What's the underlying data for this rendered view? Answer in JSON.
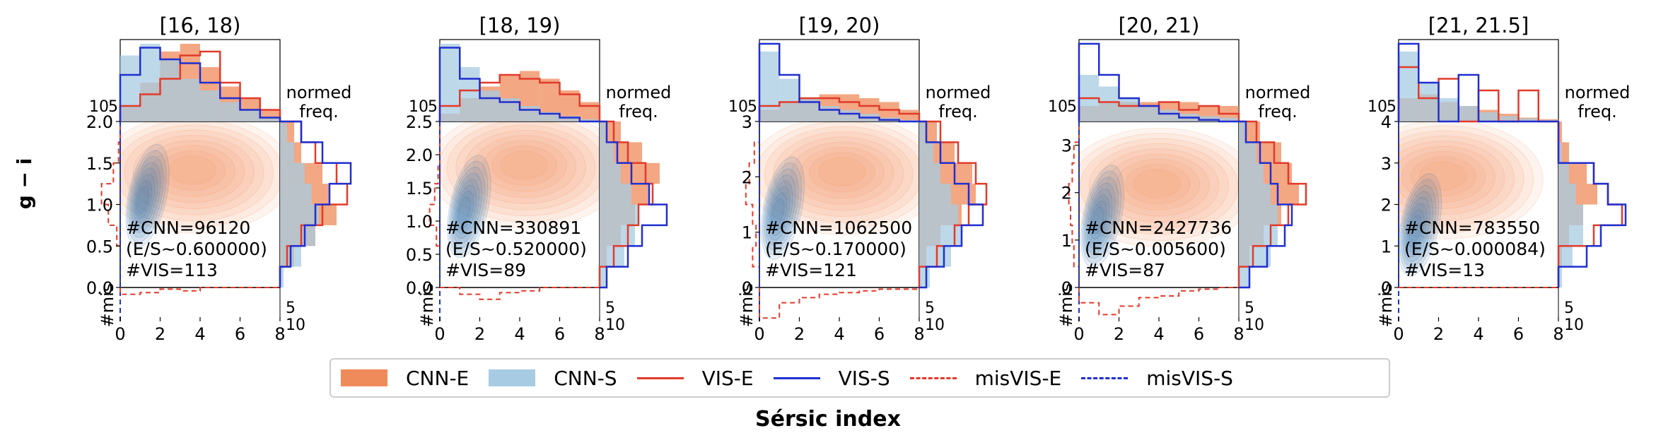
{
  "figure": {
    "ylabel": "g − i",
    "xlabel": "Sérsic index",
    "marg_x_label_top": "normed",
    "marg_x_label_bottom": "freq.",
    "top_ticks": [
      "10",
      "5"
    ],
    "bottom_marg_ticks": [
      "5",
      "10"
    ],
    "bottom_marg_label": "#mis"
  },
  "colors": {
    "cnn_e": "#ef8a5a",
    "cnn_s": "#a7cbe2",
    "vis_e": "#e23a2a",
    "vis_s": "#1f2fd0",
    "kde_blue": "#2b6ca8",
    "kde_orange": "#f08a4b"
  },
  "legend": [
    {
      "label": "CNN-E",
      "style": "patch",
      "color": "#ef8a5a"
    },
    {
      "label": "CNN-S",
      "style": "patch",
      "color": "#a7cbe2"
    },
    {
      "label": "VIS-E",
      "style": "solid",
      "color": "#e23a2a"
    },
    {
      "label": "VIS-S",
      "style": "solid",
      "color": "#1f2fd0"
    },
    {
      "label": "misVIS-E",
      "style": "dashed",
      "color": "#e23a2a"
    },
    {
      "label": "misVIS-S",
      "style": "dashed",
      "color": "#1f2fd0"
    }
  ],
  "chart_data": [
    {
      "type": "scatter",
      "title": "[16, 18)",
      "xlim": [
        0,
        8
      ],
      "ylim": [
        0,
        2.0
      ],
      "xticks": [
        "0",
        "2",
        "4",
        "6",
        "8"
      ],
      "yticks": [
        "0.0",
        "0.5",
        "1.0",
        "1.5",
        "2.0"
      ],
      "annotation": [
        "#CNN=96120",
        "(E/S~0.600000)",
        "#VIS=113"
      ],
      "kde_centers": {
        "spiral": [
          1.1,
          1.05
        ],
        "elliptical": [
          3.6,
          1.42
        ]
      },
      "hist_top": {
        "cnn_e": [
          0.2,
          0.5,
          0.9,
          1.0,
          0.7,
          0.45,
          0.3,
          0.15
        ],
        "cnn_s": [
          0.85,
          1.0,
          0.8,
          0.55,
          0.4,
          0.25,
          0.15,
          0.05
        ],
        "vis_e": [
          0.2,
          0.35,
          0.55,
          0.85,
          0.9,
          0.5,
          0.3,
          0.15
        ],
        "vis_s": [
          0.6,
          0.95,
          0.8,
          0.75,
          0.5,
          0.3,
          0.15,
          0.05
        ]
      },
      "hist_right": {
        "cnn_e": [
          0.0,
          0.2,
          0.5,
          0.8,
          0.7,
          0.6,
          0.3,
          0.2
        ],
        "cnn_s": [
          0.05,
          0.3,
          0.5,
          0.55,
          0.45,
          0.35,
          0.2,
          0.1
        ],
        "vis_e": [
          0.0,
          0.1,
          0.3,
          0.6,
          0.95,
          0.8,
          0.5,
          0.3
        ],
        "vis_s": [
          0.0,
          0.15,
          0.35,
          0.5,
          0.7,
          1.0,
          0.6,
          0.3
        ]
      },
      "mis_left_e": [
        0.0,
        0.0,
        0.1,
        0.35,
        0.55,
        0.2,
        0.05,
        0.0
      ],
      "mis_bottom_e": [
        0.2,
        0.15,
        0.05,
        0.1,
        0.0,
        0.0,
        0.0,
        0.0
      ]
    },
    {
      "type": "scatter",
      "title": "[18, 19)",
      "xlim": [
        0,
        8
      ],
      "ylim": [
        0,
        2.5
      ],
      "xticks": [
        "0",
        "2",
        "4",
        "6",
        "8"
      ],
      "yticks": [
        "0.0",
        "0.5",
        "1.0",
        "1.5",
        "2.0",
        "2.5"
      ],
      "annotation": [
        "#CNN=330891",
        "(E/S~0.520000)",
        "#VIS=89"
      ],
      "kde_centers": {
        "spiral": [
          1.2,
          1.15
        ],
        "elliptical": [
          4.2,
          1.85
        ]
      },
      "hist_top": {
        "cnn_e": [
          0.1,
          0.3,
          0.45,
          0.6,
          0.65,
          0.55,
          0.4,
          0.25
        ],
        "cnn_s": [
          1.0,
          0.7,
          0.4,
          0.3,
          0.2,
          0.12,
          0.07,
          0.03
        ],
        "vis_e": [
          0.2,
          0.4,
          0.5,
          0.6,
          0.55,
          0.5,
          0.35,
          0.2
        ],
        "vis_s": [
          0.95,
          0.55,
          0.3,
          0.25,
          0.15,
          0.1,
          0.05,
          0.0
        ]
      },
      "hist_right": {
        "cnn_e": [
          0.0,
          0.1,
          0.3,
          0.5,
          0.7,
          0.85,
          0.6,
          0.3
        ],
        "cnn_s": [
          0.1,
          0.35,
          0.5,
          0.55,
          0.45,
          0.3,
          0.2,
          0.1
        ],
        "vis_e": [
          0.0,
          0.2,
          0.4,
          0.55,
          0.75,
          0.65,
          0.4,
          0.2
        ],
        "vis_s": [
          0.1,
          0.4,
          0.6,
          0.95,
          0.7,
          0.45,
          0.25,
          0.1
        ]
      },
      "mis_left_e": [
        0.0,
        0.0,
        0.1,
        0.3,
        0.15,
        0.05,
        0.0,
        0.0
      ],
      "mis_bottom_e": [
        0.0,
        0.2,
        0.35,
        0.15,
        0.1,
        0.0,
        0.0,
        0.0
      ]
    },
    {
      "type": "scatter",
      "title": "[19, 20)",
      "xlim": [
        0,
        8
      ],
      "ylim": [
        0,
        3
      ],
      "xticks": [
        "0",
        "2",
        "4",
        "6",
        "8"
      ],
      "yticks": [
        "0",
        "1",
        "2",
        "3"
      ],
      "annotation": [
        "#CNN=1062500",
        "(E/S~0.170000)",
        "#VIS=121"
      ],
      "kde_centers": {
        "spiral": [
          0.9,
          1.35
        ],
        "elliptical": [
          4.1,
          2.1
        ]
      },
      "hist_top": {
        "cnn_e": [
          0.15,
          0.25,
          0.3,
          0.35,
          0.35,
          0.3,
          0.25,
          0.15
        ],
        "cnn_s": [
          0.9,
          0.55,
          0.3,
          0.2,
          0.15,
          0.1,
          0.05,
          0.02
        ],
        "vis_e": [
          0.2,
          0.25,
          0.3,
          0.3,
          0.25,
          0.2,
          0.15,
          0.1
        ],
        "vis_s": [
          1.0,
          0.6,
          0.25,
          0.15,
          0.1,
          0.05,
          0.02,
          0.0
        ]
      },
      "hist_right": {
        "cnn_e": [
          0.0,
          0.1,
          0.3,
          0.6,
          0.8,
          0.75,
          0.5,
          0.25
        ],
        "cnn_s": [
          0.15,
          0.45,
          0.6,
          0.55,
          0.45,
          0.3,
          0.2,
          0.1
        ],
        "vis_e": [
          0.0,
          0.25,
          0.5,
          0.7,
          0.95,
          0.8,
          0.55,
          0.3
        ],
        "vis_s": [
          0.1,
          0.35,
          0.6,
          0.9,
          0.7,
          0.5,
          0.3,
          0.1
        ]
      },
      "mis_left_e": [
        0.0,
        0.2,
        0.1,
        0.2,
        0.4,
        0.3,
        0.15,
        0.0
      ],
      "mis_bottom_e": [
        0.9,
        0.45,
        0.3,
        0.2,
        0.15,
        0.1,
        0.05,
        0.05
      ]
    },
    {
      "type": "scatter",
      "title": "[20, 21)",
      "xlim": [
        0,
        8
      ],
      "ylim": [
        0,
        3.5
      ],
      "xticks": [
        "0",
        "2",
        "4",
        "6",
        "8"
      ],
      "yticks": [
        "0",
        "1",
        "2",
        "3"
      ],
      "annotation": [
        "#CNN=2427736",
        "(E/S~0.005600)",
        "#VIS=87"
      ],
      "kde_centers": {
        "spiral": [
          0.9,
          1.4
        ],
        "elliptical": [
          3.9,
          2.2
        ]
      },
      "hist_top": {
        "cnn_e": [
          0.2,
          0.25,
          0.25,
          0.25,
          0.25,
          0.25,
          0.2,
          0.2
        ],
        "cnn_s": [
          0.6,
          0.45,
          0.3,
          0.2,
          0.15,
          0.1,
          0.07,
          0.05
        ],
        "vis_e": [
          0.3,
          0.25,
          0.2,
          0.2,
          0.25,
          0.15,
          0.2,
          0.1
        ],
        "vis_s": [
          1.0,
          0.6,
          0.3,
          0.2,
          0.1,
          0.05,
          0.02,
          0.0
        ]
      },
      "hist_right": {
        "cnn_e": [
          0.0,
          0.15,
          0.35,
          0.6,
          0.85,
          0.75,
          0.6,
          0.3
        ],
        "cnn_s": [
          0.15,
          0.45,
          0.55,
          0.55,
          0.45,
          0.35,
          0.25,
          0.1
        ],
        "vis_e": [
          0.0,
          0.2,
          0.45,
          0.7,
          0.95,
          0.7,
          0.5,
          0.25
        ],
        "vis_s": [
          0.15,
          0.4,
          0.65,
          0.75,
          0.55,
          0.45,
          0.3,
          0.1
        ]
      },
      "mis_left_e": [
        0.0,
        0.15,
        0.2,
        0.25,
        0.3,
        0.2,
        0.15,
        0.0
      ],
      "mis_bottom_e": [
        0.45,
        0.8,
        0.55,
        0.3,
        0.25,
        0.1,
        0.05,
        0.0
      ]
    },
    {
      "type": "scatter",
      "title": "[21, 21.5]",
      "xlim": [
        0,
        8
      ],
      "ylim": [
        0,
        4
      ],
      "xticks": [
        "0",
        "2",
        "4",
        "6",
        "8"
      ],
      "yticks": [
        "0",
        "1",
        "2",
        "3",
        "4"
      ],
      "annotation": [
        "#CNN=783550",
        "(E/S~0.000084)",
        "#VIS=13"
      ],
      "kde_centers": {
        "spiral": [
          0.8,
          1.4
        ],
        "elliptical": [
          2.2,
          2.7
        ]
      },
      "hist_top": {
        "cnn_e": [
          0.3,
          0.35,
          0.25,
          0.2,
          0.15,
          0.1,
          0.05,
          0.03
        ],
        "cnn_s": [
          0.9,
          0.5,
          0.3,
          0.2,
          0.12,
          0.07,
          0.04,
          0.02
        ],
        "vis_e": [
          0.7,
          0.3,
          0.55,
          0.0,
          0.4,
          0.0,
          0.4,
          0.0
        ],
        "vis_s": [
          1.0,
          0.5,
          0.0,
          0.6,
          0.0,
          0.0,
          0.0,
          0.0
        ]
      },
      "hist_right": {
        "cnn_e": [
          0.0,
          0.05,
          0.15,
          0.35,
          0.55,
          0.4,
          0.15,
          0.05
        ],
        "cnn_s": [
          0.05,
          0.2,
          0.35,
          0.35,
          0.25,
          0.15,
          0.05,
          0.0
        ],
        "vis_e": [
          0.0,
          0.0,
          0.5,
          0.9,
          0.7,
          0.5,
          0.0,
          0.0
        ],
        "vis_s": [
          0.0,
          0.4,
          0.6,
          0.95,
          0.7,
          0.5,
          0.0,
          0.0
        ]
      },
      "mis_left_e": [
        0,
        0,
        0,
        0,
        0,
        0,
        0,
        0
      ],
      "mis_bottom_e": [
        0,
        0,
        0,
        0,
        0,
        0,
        0,
        0
      ]
    }
  ]
}
